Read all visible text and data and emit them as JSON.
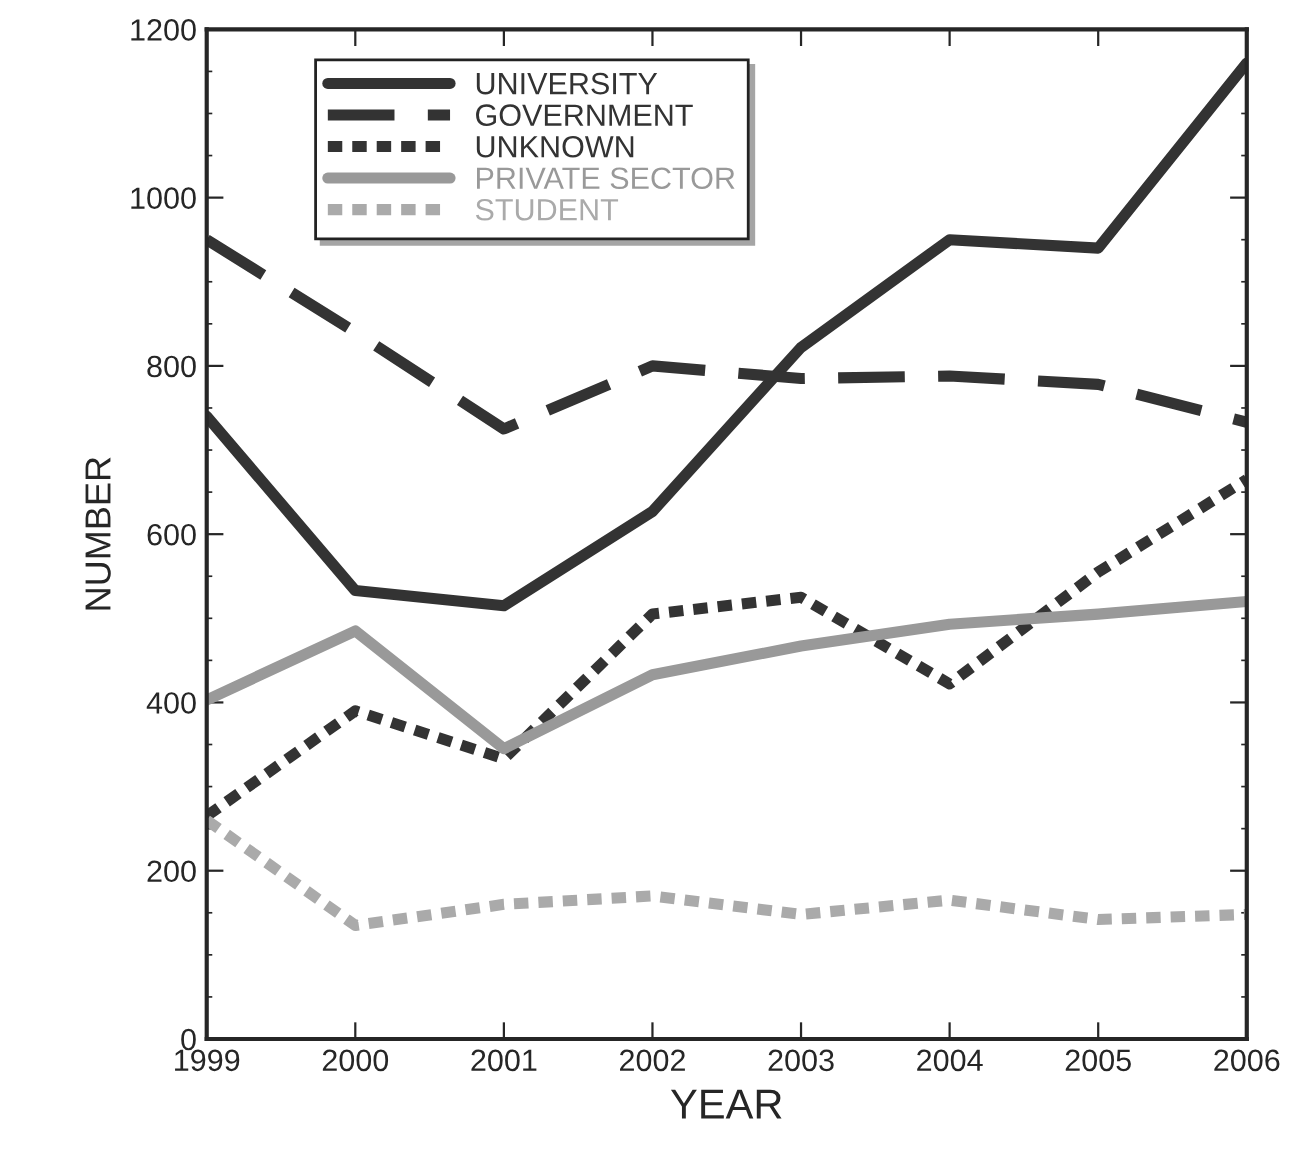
{
  "chart_data": {
    "type": "line",
    "xlabel": "YEAR",
    "ylabel": "NUMBER",
    "x": [
      1999,
      2000,
      2001,
      2002,
      2003,
      2004,
      2005,
      2006
    ],
    "series": [
      {
        "name": "UNIVERSITY",
        "color": "#333333",
        "line_style": "solid",
        "values": [
          740,
          533,
          515,
          627,
          822,
          950,
          940,
          1160
        ]
      },
      {
        "name": "GOVERNMENT",
        "color": "#333333",
        "line_style": "dashed",
        "values": [
          950,
          840,
          725,
          800,
          785,
          788,
          778,
          733
        ]
      },
      {
        "name": "UNKNOWN",
        "color": "#333333",
        "line_style": "dotted",
        "values": [
          265,
          390,
          333,
          505,
          525,
          422,
          555,
          665
        ]
      },
      {
        "name": "PRIVATE SECTOR",
        "color": "#999999",
        "line_style": "solid",
        "values": [
          403,
          485,
          345,
          433,
          467,
          493,
          505,
          520
        ]
      },
      {
        "name": "STUDENT",
        "color": "#aaaaaa",
        "line_style": "dotted",
        "values": [
          260,
          135,
          160,
          170,
          148,
          165,
          142,
          148
        ]
      }
    ],
    "xlim": [
      1999,
      2006
    ],
    "xticks": [
      1999,
      2000,
      2001,
      2002,
      2003,
      2004,
      2005,
      2006
    ],
    "ylim": [
      0,
      1200
    ],
    "yticks": [
      0,
      200,
      400,
      600,
      800,
      1000,
      1200
    ],
    "grid": false,
    "legend": "top left"
  }
}
